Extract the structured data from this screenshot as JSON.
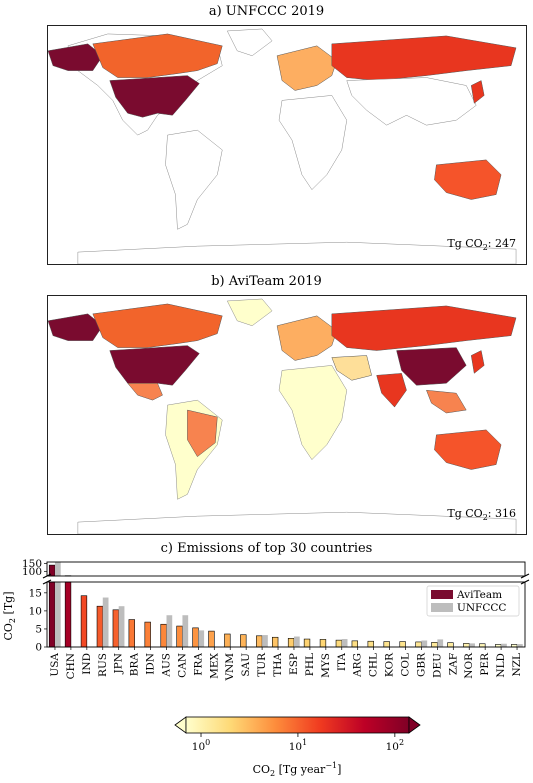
{
  "panel_a": {
    "title": "a) UNFCCC 2019",
    "total_prefix": "Tg CO",
    "total_sub": "2",
    "total_value": ": 247"
  },
  "panel_b": {
    "title": "b) AviTeam 2019",
    "total_prefix": "Tg CO",
    "total_sub": "2",
    "total_value": ": 316"
  },
  "colors": {
    "avi": "#7a0b2f",
    "unfccc": "#bdbdbd",
    "low": "#ffffcc",
    "mid": "#fd8d3c",
    "high": "#800026"
  },
  "chart_data": {
    "type": "bar",
    "title": "c) Emissions of top 30 countries",
    "ylabel": "CO2 [Tg]",
    "ylabel_main": "CO",
    "ylabel_sub": "2",
    "ylabel_unit": " [Tg]",
    "categories": [
      "USA",
      "CHN",
      "IND",
      "RUS",
      "JPN",
      "BRA",
      "IDN",
      "AUS",
      "CAN",
      "FRA",
      "MEX",
      "VNM",
      "SAU",
      "TUR",
      "THA",
      "ESP",
      "PHL",
      "MYS",
      "ITA",
      "ARG",
      "CHL",
      "KOR",
      "COL",
      "GBR",
      "DEU",
      "ZAF",
      "NOR",
      "PER",
      "NLD",
      "NZL"
    ],
    "series": [
      {
        "name": "AviTeam",
        "values": [
          140,
          72,
          14.2,
          11.3,
          10.3,
          7.6,
          6.9,
          6.3,
          5.8,
          5.3,
          4.4,
          3.6,
          3.4,
          3.1,
          2.7,
          2.4,
          2.2,
          2.1,
          1.9,
          1.7,
          1.6,
          1.5,
          1.5,
          1.4,
          1.3,
          1.2,
          1.0,
          0.9,
          0.7,
          0.7
        ]
      },
      {
        "name": "UNFCCC",
        "values": [
          160,
          null,
          null,
          13.7,
          11.3,
          null,
          null,
          8.8,
          8.8,
          4.6,
          null,
          null,
          null,
          3.3,
          null,
          2.9,
          null,
          null,
          2.2,
          null,
          null,
          null,
          null,
          1.8,
          2.1,
          null,
          1.0,
          null,
          0.9,
          0.8
        ]
      }
    ],
    "yticks_lower": [
      0,
      5,
      10,
      15
    ],
    "yticks_upper": [
      100,
      150
    ],
    "ylim_lower": [
      0,
      18
    ],
    "ylim_upper": [
      70,
      160
    ],
    "legend_position": "right"
  },
  "colorbar": {
    "label_main": "CO",
    "label_sub": "2",
    "label_unit": " [Tg year",
    "label_exp": "−1",
    "label_close": "]",
    "ticks": [
      {
        "base": "10",
        "exp": "0"
      },
      {
        "base": "10",
        "exp": "1"
      },
      {
        "base": "10",
        "exp": "2"
      }
    ],
    "tick_values": [
      1,
      10,
      100
    ],
    "range": [
      0.7,
      140
    ],
    "scale": "log"
  }
}
